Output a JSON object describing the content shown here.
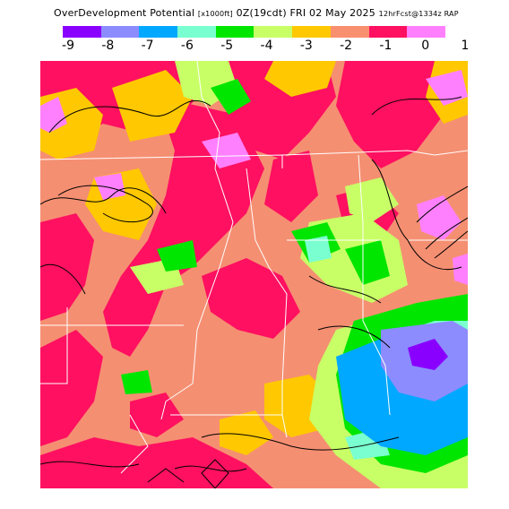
{
  "title": {
    "product": "OverDevelopment Potential",
    "units": "[x1000ft]",
    "valid": "0Z(19cdt) FRI 02 May 2025",
    "model": "12hrFcst@1334z RAP"
  },
  "legend": {
    "labels": [
      "-9",
      "-8",
      "-7",
      "-6",
      "-5",
      "-4",
      "-3",
      "-2",
      "-1",
      "0",
      "1"
    ],
    "colors": [
      "#8a00ff",
      "#8c8cff",
      "#00a8ff",
      "#7affd0",
      "#00e600",
      "#c8ff66",
      "#ffc800",
      "#f89070",
      "#ff1060",
      "#ff80ff"
    ]
  }
}
